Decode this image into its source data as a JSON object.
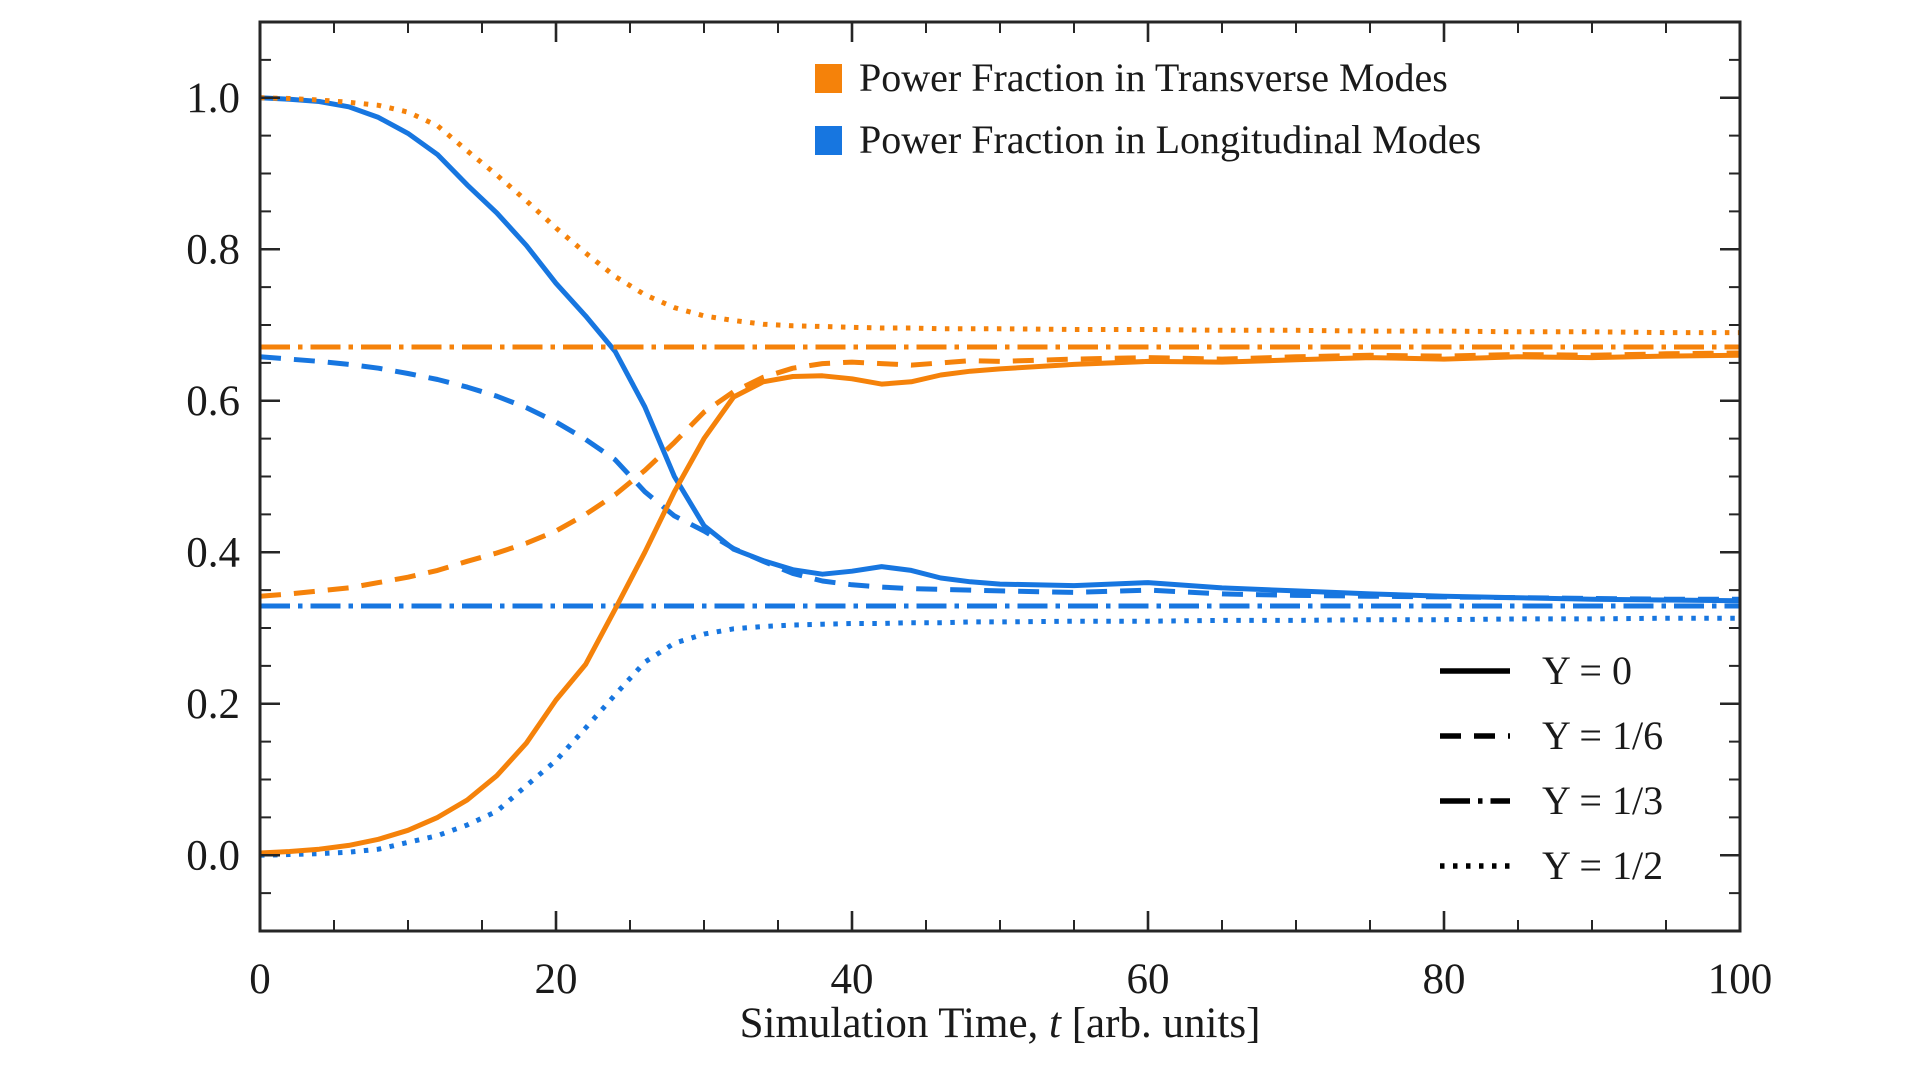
{
  "chart_data": {
    "type": "line",
    "title": "",
    "xlabel": {
      "prefix": "Simulation Time, ",
      "var": "t",
      "suffix": " [arb. units]"
    },
    "ylabel": "",
    "xlim": [
      0,
      100
    ],
    "ylim": [
      -0.1,
      1.1
    ],
    "x_ticks": [
      0,
      20,
      40,
      60,
      80,
      100
    ],
    "x_tick_labels": [
      "0",
      "20",
      "40",
      "60",
      "80",
      "100"
    ],
    "y_ticks": [
      0.0,
      0.2,
      0.4,
      0.6,
      0.8,
      1.0
    ],
    "y_tick_labels": [
      "0.0",
      "0.2",
      "0.4",
      "0.6",
      "0.8",
      "1.0"
    ],
    "x_minor_step": 5,
    "y_minor_step": 0.05,
    "grid": false,
    "colors": {
      "transverse": "#f5820a",
      "longitudinal": "#1776e0",
      "axis": "#262626",
      "text": "#1a1a1a",
      "legend_line": "#000000"
    },
    "color_legend": {
      "position": "upper right",
      "items": [
        {
          "label": "Power Fraction in Transverse Modes",
          "color_key": "transverse"
        },
        {
          "label": "Power Fraction in Longitudinal Modes",
          "color_key": "longitudinal"
        }
      ]
    },
    "style_legend": {
      "position": "lower right",
      "items": [
        {
          "label": "Υ = 0",
          "style": "solid"
        },
        {
          "label": "Υ = 1/6",
          "style": "dashed"
        },
        {
          "label": "Υ = 1/3",
          "style": "dashdot"
        },
        {
          "label": "Υ = 1/2",
          "style": "dotted"
        }
      ]
    },
    "series": [
      {
        "name": "longitudinal-upsilon-0",
        "group": "longitudinal",
        "style": "solid",
        "x": [
          0,
          2,
          4,
          6,
          8,
          10,
          12,
          14,
          16,
          18,
          20,
          22,
          24,
          26,
          28,
          30,
          32,
          34,
          36,
          38,
          40,
          42,
          44,
          46,
          48,
          50,
          55,
          60,
          65,
          70,
          75,
          80,
          85,
          90,
          95,
          100
        ],
        "y": [
          1.0,
          0.998,
          0.995,
          0.988,
          0.974,
          0.953,
          0.925,
          0.885,
          0.848,
          0.805,
          0.755,
          0.712,
          0.665,
          0.592,
          0.5,
          0.435,
          0.404,
          0.389,
          0.377,
          0.371,
          0.375,
          0.381,
          0.376,
          0.366,
          0.361,
          0.358,
          0.356,
          0.36,
          0.353,
          0.349,
          0.345,
          0.342,
          0.34,
          0.338,
          0.337,
          0.336
        ]
      },
      {
        "name": "longitudinal-upsilon-1-6",
        "group": "longitudinal",
        "style": "dashed",
        "x": [
          0,
          2,
          4,
          6,
          8,
          10,
          12,
          14,
          16,
          18,
          20,
          22,
          24,
          26,
          28,
          30,
          32,
          34,
          36,
          38,
          40,
          42,
          44,
          46,
          48,
          50,
          55,
          60,
          65,
          70,
          75,
          80,
          85,
          90,
          95,
          100
        ],
        "y": [
          0.658,
          0.655,
          0.652,
          0.648,
          0.643,
          0.636,
          0.628,
          0.618,
          0.606,
          0.591,
          0.572,
          0.549,
          0.522,
          0.48,
          0.448,
          0.428,
          0.405,
          0.388,
          0.372,
          0.362,
          0.357,
          0.354,
          0.352,
          0.351,
          0.35,
          0.349,
          0.347,
          0.35,
          0.345,
          0.343,
          0.342,
          0.341,
          0.34,
          0.339,
          0.338,
          0.338
        ]
      },
      {
        "name": "longitudinal-upsilon-1-3",
        "group": "longitudinal",
        "style": "dashdot",
        "x": [
          0,
          100
        ],
        "y": [
          0.329,
          0.329
        ]
      },
      {
        "name": "longitudinal-upsilon-1-2",
        "group": "longitudinal",
        "style": "dotted",
        "x": [
          0,
          2,
          4,
          6,
          8,
          10,
          12,
          14,
          16,
          18,
          20,
          22,
          24,
          26,
          28,
          30,
          32,
          34,
          36,
          38,
          40,
          42,
          44,
          46,
          48,
          50,
          55,
          60,
          65,
          70,
          75,
          80,
          85,
          90,
          95,
          100
        ],
        "y": [
          0.0,
          0.001,
          0.002,
          0.004,
          0.008,
          0.017,
          0.026,
          0.04,
          0.058,
          0.092,
          0.125,
          0.168,
          0.212,
          0.255,
          0.28,
          0.292,
          0.299,
          0.302,
          0.304,
          0.305,
          0.306,
          0.306,
          0.307,
          0.307,
          0.308,
          0.308,
          0.309,
          0.309,
          0.31,
          0.31,
          0.311,
          0.311,
          0.312,
          0.312,
          0.313,
          0.313
        ]
      },
      {
        "name": "transverse-upsilon-0",
        "group": "transverse",
        "style": "solid",
        "x": [
          0,
          2,
          4,
          6,
          8,
          10,
          12,
          14,
          16,
          18,
          20,
          22,
          24,
          26,
          28,
          30,
          32,
          34,
          36,
          38,
          40,
          42,
          44,
          46,
          48,
          50,
          55,
          60,
          65,
          70,
          75,
          80,
          85,
          90,
          95,
          100
        ],
        "y": [
          0.003,
          0.005,
          0.008,
          0.013,
          0.021,
          0.033,
          0.05,
          0.073,
          0.105,
          0.148,
          0.205,
          0.252,
          0.325,
          0.4,
          0.48,
          0.55,
          0.605,
          0.625,
          0.632,
          0.633,
          0.629,
          0.622,
          0.625,
          0.634,
          0.639,
          0.642,
          0.648,
          0.652,
          0.651,
          0.654,
          0.657,
          0.655,
          0.658,
          0.657,
          0.659,
          0.66
        ]
      },
      {
        "name": "transverse-upsilon-1-6",
        "group": "transverse",
        "style": "dashed",
        "x": [
          0,
          2,
          4,
          6,
          8,
          10,
          12,
          14,
          16,
          18,
          20,
          22,
          24,
          26,
          28,
          30,
          32,
          34,
          36,
          38,
          40,
          42,
          44,
          46,
          48,
          50,
          55,
          60,
          65,
          70,
          75,
          80,
          85,
          90,
          95,
          100
        ],
        "y": [
          0.342,
          0.345,
          0.349,
          0.353,
          0.36,
          0.367,
          0.376,
          0.388,
          0.399,
          0.412,
          0.428,
          0.45,
          0.476,
          0.508,
          0.545,
          0.585,
          0.612,
          0.631,
          0.643,
          0.649,
          0.651,
          0.649,
          0.647,
          0.65,
          0.653,
          0.652,
          0.655,
          0.657,
          0.655,
          0.658,
          0.66,
          0.659,
          0.661,
          0.66,
          0.662,
          0.663
        ]
      },
      {
        "name": "transverse-upsilon-1-3",
        "group": "transverse",
        "style": "dashdot",
        "x": [
          0,
          100
        ],
        "y": [
          0.671,
          0.671
        ]
      },
      {
        "name": "transverse-upsilon-1-2",
        "group": "transverse",
        "style": "dotted",
        "x": [
          0,
          2,
          4,
          6,
          8,
          10,
          12,
          14,
          16,
          18,
          20,
          22,
          24,
          26,
          28,
          30,
          32,
          34,
          36,
          38,
          40,
          42,
          44,
          46,
          48,
          50,
          55,
          60,
          65,
          70,
          75,
          80,
          85,
          90,
          95,
          100
        ],
        "y": [
          1.0,
          0.999,
          0.997,
          0.994,
          0.99,
          0.981,
          0.963,
          0.93,
          0.898,
          0.864,
          0.828,
          0.795,
          0.764,
          0.74,
          0.723,
          0.712,
          0.706,
          0.701,
          0.699,
          0.698,
          0.697,
          0.696,
          0.696,
          0.695,
          0.695,
          0.695,
          0.694,
          0.694,
          0.693,
          0.693,
          0.692,
          0.692,
          0.691,
          0.691,
          0.69,
          0.69
        ]
      }
    ]
  }
}
